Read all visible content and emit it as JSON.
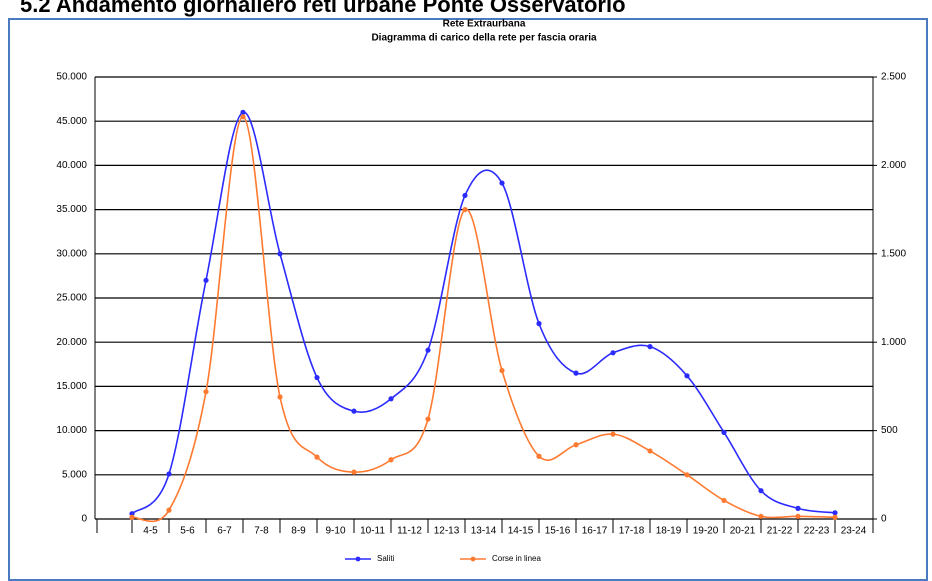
{
  "header": {
    "title": "5.2 Andamento giornaliero reti urbane Ponte Osservatorio"
  },
  "chart_data": {
    "type": "line",
    "title": "Rete Extraurbana",
    "subtitle": "Diagramma di carico della rete per fascia oraria",
    "categories": [
      "4-5",
      "5-6",
      "6-7",
      "7-8",
      "8-9",
      "9-10",
      "10-11",
      "11-12",
      "12-13",
      "13-14",
      "14-15",
      "15-16",
      "16-17",
      "17-18",
      "18-19",
      "19-20",
      "20-21",
      "21-22",
      "22-23",
      "23-24"
    ],
    "series": [
      {
        "name": "Saliti",
        "color": "#2b2bff",
        "values": [
          600,
          5100,
          27000,
          46000,
          30000,
          16000,
          12200,
          13600,
          19100,
          36600,
          38000,
          22100,
          16500,
          18800,
          19500,
          16200,
          9800,
          3200,
          1200,
          700
        ]
      },
      {
        "name": "Corse in linea",
        "color": "#ff7a30",
        "axis": "y2",
        "values": [
          10,
          50,
          720,
          2275,
          690,
          350,
          265,
          335,
          565,
          1750,
          840,
          355,
          420,
          480,
          385,
          250,
          105,
          15,
          15,
          10
        ]
      }
    ],
    "ylim": [
      0,
      50000
    ],
    "yticks": [
      {
        "value": 0,
        "label": "0"
      },
      {
        "value": 5000,
        "label": "5.000"
      },
      {
        "value": 10000,
        "label": "10.000"
      },
      {
        "value": 15000,
        "label": "15.000"
      },
      {
        "value": 20000,
        "label": "20.000"
      },
      {
        "value": 25000,
        "label": "25.000"
      },
      {
        "value": 30000,
        "label": "30.000"
      },
      {
        "value": 35000,
        "label": "35.000"
      },
      {
        "value": 40000,
        "label": "40.000"
      },
      {
        "value": 45000,
        "label": "45.000"
      },
      {
        "value": 50000,
        "label": "50.000"
      }
    ],
    "y2lim": [
      0,
      2500
    ],
    "y2ticks": [
      0,
      500,
      {
        "value": 1000,
        "label": "1.000"
      },
      {
        "value": 1500,
        "label": "1.500"
      },
      {
        "value": 2000,
        "label": "2.000"
      },
      {
        "value": 2500,
        "label": "2.500"
      }
    ],
    "grid": true,
    "smooth": true,
    "legend": "bottom"
  }
}
